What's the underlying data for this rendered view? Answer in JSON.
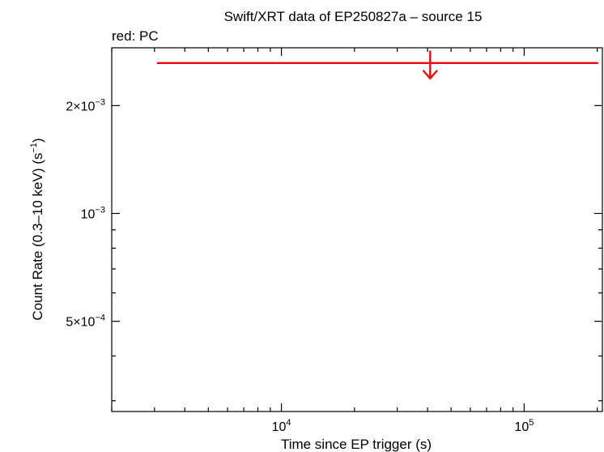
{
  "chart_data": {
    "type": "scatter",
    "title": "Swift/XRT data of EP250827a – source 15",
    "legend_note": "red: PC",
    "xlabel": "Time since EP trigger (s)",
    "ylabel": {
      "main": "Count Rate (0.3–10 keV) (s",
      "sup": "−1",
      "end": ")"
    },
    "x_scale": "log",
    "y_scale": "log",
    "xlim": [
      2000,
      210000
    ],
    "ylim": [
      0.00028,
      0.0029
    ],
    "x_ticks": [
      {
        "value": 10000,
        "base": "10",
        "exp": "4"
      },
      {
        "value": 100000,
        "base": "10",
        "exp": "5"
      }
    ],
    "y_ticks": [
      {
        "value": 0.0002,
        "pre": "",
        "base": "10",
        "exp": "−4",
        "hidden": true
      },
      {
        "value": 0.0005,
        "pre": "5×",
        "base": "10",
        "exp": "−4"
      },
      {
        "value": 0.001,
        "pre": "",
        "base": "10",
        "exp": "−3"
      },
      {
        "value": 0.002,
        "pre": "2×",
        "base": "10",
        "exp": "−3"
      }
    ],
    "series": [
      {
        "mode": "PC",
        "color": "#e8080c",
        "upper_limits": [
          {
            "x": 41000,
            "x_lo": 3100,
            "x_hi": 200000,
            "y": 0.00263
          }
        ]
      }
    ]
  }
}
